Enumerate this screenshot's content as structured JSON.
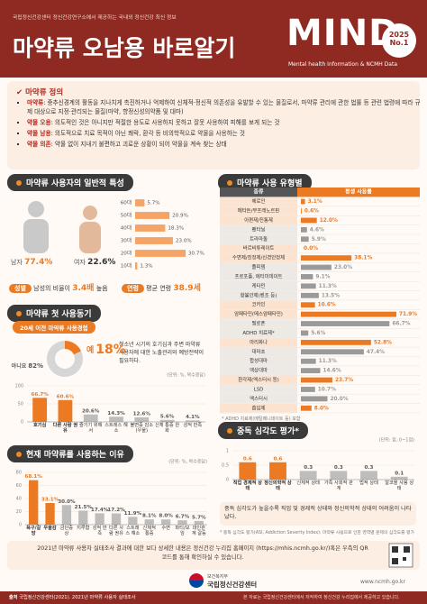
{
  "header": {
    "org_line": "국립정신건강센터 정신건강연구소에서 제공하는 국내외 정신건강 최신 정보",
    "title": "마약류 오남용 바로알기",
    "brand": "MIND",
    "year": "2025",
    "issue": "No.1",
    "tagline": "Mental health Information & NCMH Data"
  },
  "definition": {
    "title": "마약류 정의",
    "items": [
      {
        "term": "마약류",
        "text": ": 중추신경계의 활동을 지나치게 촉진하거나 억제하여 신체적·정신적 의존성을 유발할 수 있는 물질로서, 마약류 관리에 관한 법률 등 관련 법령에 따라 규제 대상으로 지정·관리되는 물질(마약, 향정신성의약품 및 대마)"
      },
      {
        "term": "약물 오용",
        "text": ": 의도적인 것은 아니지만 적절한 용도로 사용하지 못하고 잘못 사용하여 피해를 보게 되는 것"
      },
      {
        "term": "약물 남용",
        "text": ": 의도적으로 치료 목적이 아닌 쾌락, 환각 등 비의학적으로 약물을 사용하는 것"
      },
      {
        "term": "약물 의존",
        "text": ": 약물 없이 지내기 불편하고 괴로운 상황이 되어 약물을 계속 찾는 상태"
      }
    ]
  },
  "demographics": {
    "male_label": "남자",
    "male_value": "77.4%",
    "female_label": "여자",
    "female_value": "22.6%",
    "sex_badge": "성별",
    "sex_text": "남성의 비율이",
    "sex_ratio": "3.4배",
    "sex_suffix": "높음",
    "age_badge": "연령",
    "age_text": "평균 연령",
    "age_mean": "38.9세"
  },
  "first_use_text": "청소년 시기의 호기심과 주변 마약류 사용자에 대한 노출관리와 예방전략이 필요하다.",
  "severity_text": "중독 심각도가 높을수록 직업 및 경제적 상태와 정신의학적 상태의 어려움이 나타났다.",
  "severity_footnote": "* 중독 심각도 평가(ASI, Addiction Severity Index): 마약류 사용으로 인한 영역별 문제의 심각도를 평가",
  "info_text": "2021년 마약류 사용자 실태조사 결과에 대한 보다 상세한 내용은 정신건강 누리집 홈페이지 (https://mhis.ncmh.go.kr/)혹은 우측의 QR코드를 통해 확인하실 수 있습니다.",
  "ministry": "보건복지부",
  "center": "국립정신건강센터",
  "website": "www.ncmh.go.kr",
  "source_label": "출처",
  "source": "국립정신건강센터(2021). 2021년 마약류 사용자 실태조사",
  "copyright": "본 자료는 국립정신건강센터에서 저작하여 정신건강 누리집에서 제공하고 있습니다.",
  "chart_data": [
    {
      "type": "bar",
      "orientation": "horizontal",
      "title": "마약류 사용자의 일반적 특성",
      "categories": [
        "60대",
        "50대",
        "40대",
        "30대",
        "20대",
        "10대"
      ],
      "values": [
        5.7,
        20.9,
        18.3,
        23.0,
        30.7,
        1.3
      ],
      "value_labels": [
        "5.7%",
        "20.9%",
        "18.3%",
        "23.0%",
        "30.7%",
        "1.3%"
      ],
      "color": "#f3a466"
    },
    {
      "type": "bar",
      "orientation": "horizontal",
      "title": "마약류 사용 유형별",
      "header": [
        "종류",
        "평생 사용률"
      ],
      "categories": [
        "헤로인",
        "메타돈/부프레노르핀",
        "아편제/진통제",
        "펜타닐",
        "트라마돌",
        "바르비튜레이트",
        "수면제/진정제/신경안정제",
        "졸피뎀",
        "프로포폴, 에티미데이트",
        "케타민",
        "항불안제(벤조 등)",
        "코카인",
        "암페타민(메스암페타민)",
        "필로폰",
        "ADHD 치료제*",
        "마리화나",
        "대마초",
        "합성대마",
        "액상대마",
        "환각제(엑스터시 등)",
        "LSD",
        "엑스터시",
        "흡입제"
      ],
      "values": [
        3.1,
        0.6,
        12.0,
        4.6,
        5.9,
        0.0,
        38.1,
        23.0,
        9.1,
        11.3,
        13.5,
        10.6,
        71.9,
        66.7,
        5.6,
        52.8,
        47.4,
        11.3,
        14.6,
        23.7,
        10.7,
        20.0,
        8.0
      ],
      "value_labels": [
        "3.1%",
        "0.6%",
        "12.0%",
        "4.6%",
        "5.9%",
        "0.0%",
        "38.1%",
        "23.0%",
        "9.1%",
        "11.3%",
        "13.5%",
        "10.6%",
        "71.9%",
        "66.7%",
        "5.6%",
        "52.8%",
        "47.4%",
        "11.3%",
        "14.6%",
        "23.7%",
        "10.7%",
        "20.0%",
        "8.0%"
      ],
      "colors": [
        "#ec7a22",
        "#ec7a22",
        "#ec7a22",
        "#9a9a9a",
        "#9a9a9a",
        "#ec7a22",
        "#ec7a22",
        "#9a9a9a",
        "#9a9a9a",
        "#9a9a9a",
        "#9a9a9a",
        "#ec7a22",
        "#ec7a22",
        "#9a9a9a",
        "#9a9a9a",
        "#ec7a22",
        "#9a9a9a",
        "#9a9a9a",
        "#9a9a9a",
        "#ec7a22",
        "#9a9a9a",
        "#9a9a9a",
        "#ec7a22"
      ],
      "footnote": "* ADHD 치료제(메틸페니데이트 등) 포함"
    },
    {
      "type": "pie",
      "title": "20세 이전 마약류 사용경험",
      "categories": [
        "예",
        "아니요"
      ],
      "values": [
        18,
        82
      ],
      "value_labels": [
        "18%",
        "82%"
      ],
      "colors": [
        "#ec7a22",
        "#d6d6d6"
      ]
    },
    {
      "type": "bar",
      "title": "마약류 첫 사용동기",
      "note": "(단위: %, 복수응답)",
      "categories": [
        "호기심",
        "다른 사람 권유",
        "즐기기 위해서",
        "스트레스 해소",
        "불면증 감소(우울)",
        "신체 통증 완화",
        "성적 만족"
      ],
      "values": [
        66.7,
        60.6,
        20.6,
        14.3,
        12.6,
        5.6,
        4.1
      ],
      "value_labels": [
        "66.7%",
        "60.6%",
        "20.6%",
        "14.3%",
        "12.6%",
        "5.6%",
        "4.1%"
      ],
      "colors": [
        "#ec7a22",
        "#ec7a22",
        "#bdbdbd",
        "#bdbdbd",
        "#bdbdbd",
        "#bdbdbd",
        "#bdbdbd"
      ],
      "ylim": [
        0,
        100
      ],
      "yticks": [
        0,
        50,
        100
      ]
    },
    {
      "type": "bar",
      "title": "현재 마약류를 사용하는 이유",
      "note": "(단위: %, 복수응답)",
      "categories": [
        "욕구/갈망",
        "우울감",
        "금단증상",
        "지루함",
        "성적 만족",
        "다른 사람 권유",
        "스트레스 해소",
        "신체적 통증",
        "수면",
        "파티/모임",
        "대인관계 갈등"
      ],
      "values": [
        68.1,
        33.1,
        30.0,
        21.5,
        17.4,
        17.2,
        11.9,
        8.1,
        8.0,
        6.7,
        5.7
      ],
      "value_labels": [
        "68.1%",
        "33.1%",
        "30.0%",
        "21.5%",
        "17.4%",
        "17.2%",
        "11.9%",
        "8.1%",
        "8.0%",
        "6.7%",
        "5.7%"
      ],
      "colors": [
        "#ec7a22",
        "#ec7a22",
        "#bdbdbd",
        "#bdbdbd",
        "#bdbdbd",
        "#bdbdbd",
        "#bdbdbd",
        "#bdbdbd",
        "#bdbdbd",
        "#bdbdbd",
        "#bdbdbd"
      ],
      "ylim": [
        0,
        80
      ],
      "yticks": [
        0,
        20,
        40,
        60,
        80
      ]
    },
    {
      "type": "bar",
      "title": "중독 심각도 평가*",
      "note": "(단위: 점, 0~1점)",
      "categories": [
        "직업 경제적 상태",
        "정신의학적 상태",
        "신체적 상태",
        "가족 사회적 관계",
        "법적 상태",
        "알코올 사용 상태"
      ],
      "values": [
        0.6,
        0.6,
        0.3,
        0.3,
        0.3,
        0.1
      ],
      "colors": [
        "#ec7a22",
        "#ec7a22",
        "#bdbdbd",
        "#bdbdbd",
        "#bdbdbd",
        "#bdbdbd"
      ],
      "ylim": [
        0,
        1
      ],
      "yticks": [
        0,
        0.5,
        1
      ]
    }
  ]
}
